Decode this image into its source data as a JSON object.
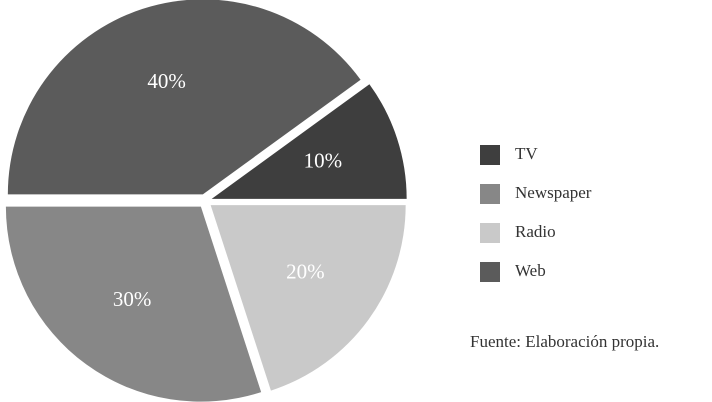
{
  "chart_data": {
    "type": "pie",
    "categories": [
      "TV",
      "Newspaper",
      "Radio",
      "Web"
    ],
    "values": [
      10,
      30,
      20,
      40
    ],
    "value_labels": [
      "10%",
      "30%",
      "20%",
      "40%"
    ],
    "colors": [
      "#3e3e3e",
      "#878787",
      "#c9c9c9",
      "#5b5b5b"
    ],
    "legend": "right",
    "note": "Fuente: Elaboración propia."
  }
}
